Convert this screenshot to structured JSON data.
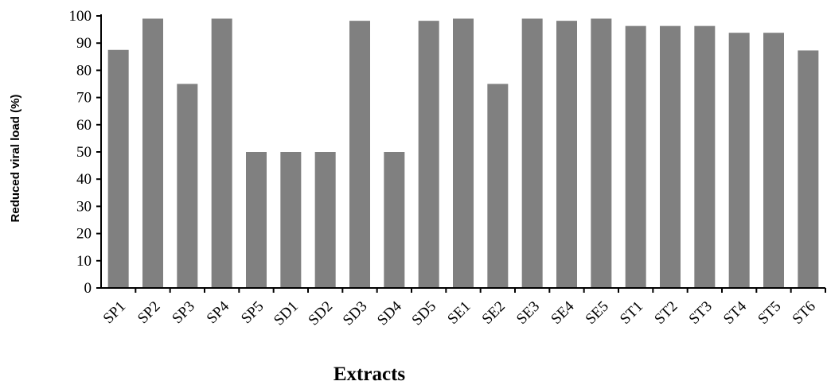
{
  "chart_data": {
    "type": "bar",
    "title": "",
    "xlabel": "Extracts",
    "ylabel": "Reduced viral load (%)",
    "ylim": [
      0,
      100
    ],
    "yticks": [
      0,
      10,
      20,
      30,
      40,
      50,
      60,
      70,
      80,
      90,
      100
    ],
    "grid": false,
    "legend": "none",
    "bar_color": "#808080",
    "categories": [
      "SP1",
      "SP2",
      "SP3",
      "SP4",
      "SP5",
      "SD1",
      "SD2",
      "SD3",
      "SD4",
      "SD5",
      "SE1",
      "SE2",
      "SE3",
      "SE4",
      "SE5",
      "ST1",
      "ST2",
      "ST3",
      "ST4",
      "ST5",
      "ST6"
    ],
    "values": [
      87.5,
      99,
      75,
      99,
      50,
      50,
      50,
      98.2,
      50,
      98.2,
      99,
      75,
      99,
      98.2,
      99,
      96.3,
      96.3,
      96.3,
      93.8,
      93.8,
      87.3
    ]
  }
}
